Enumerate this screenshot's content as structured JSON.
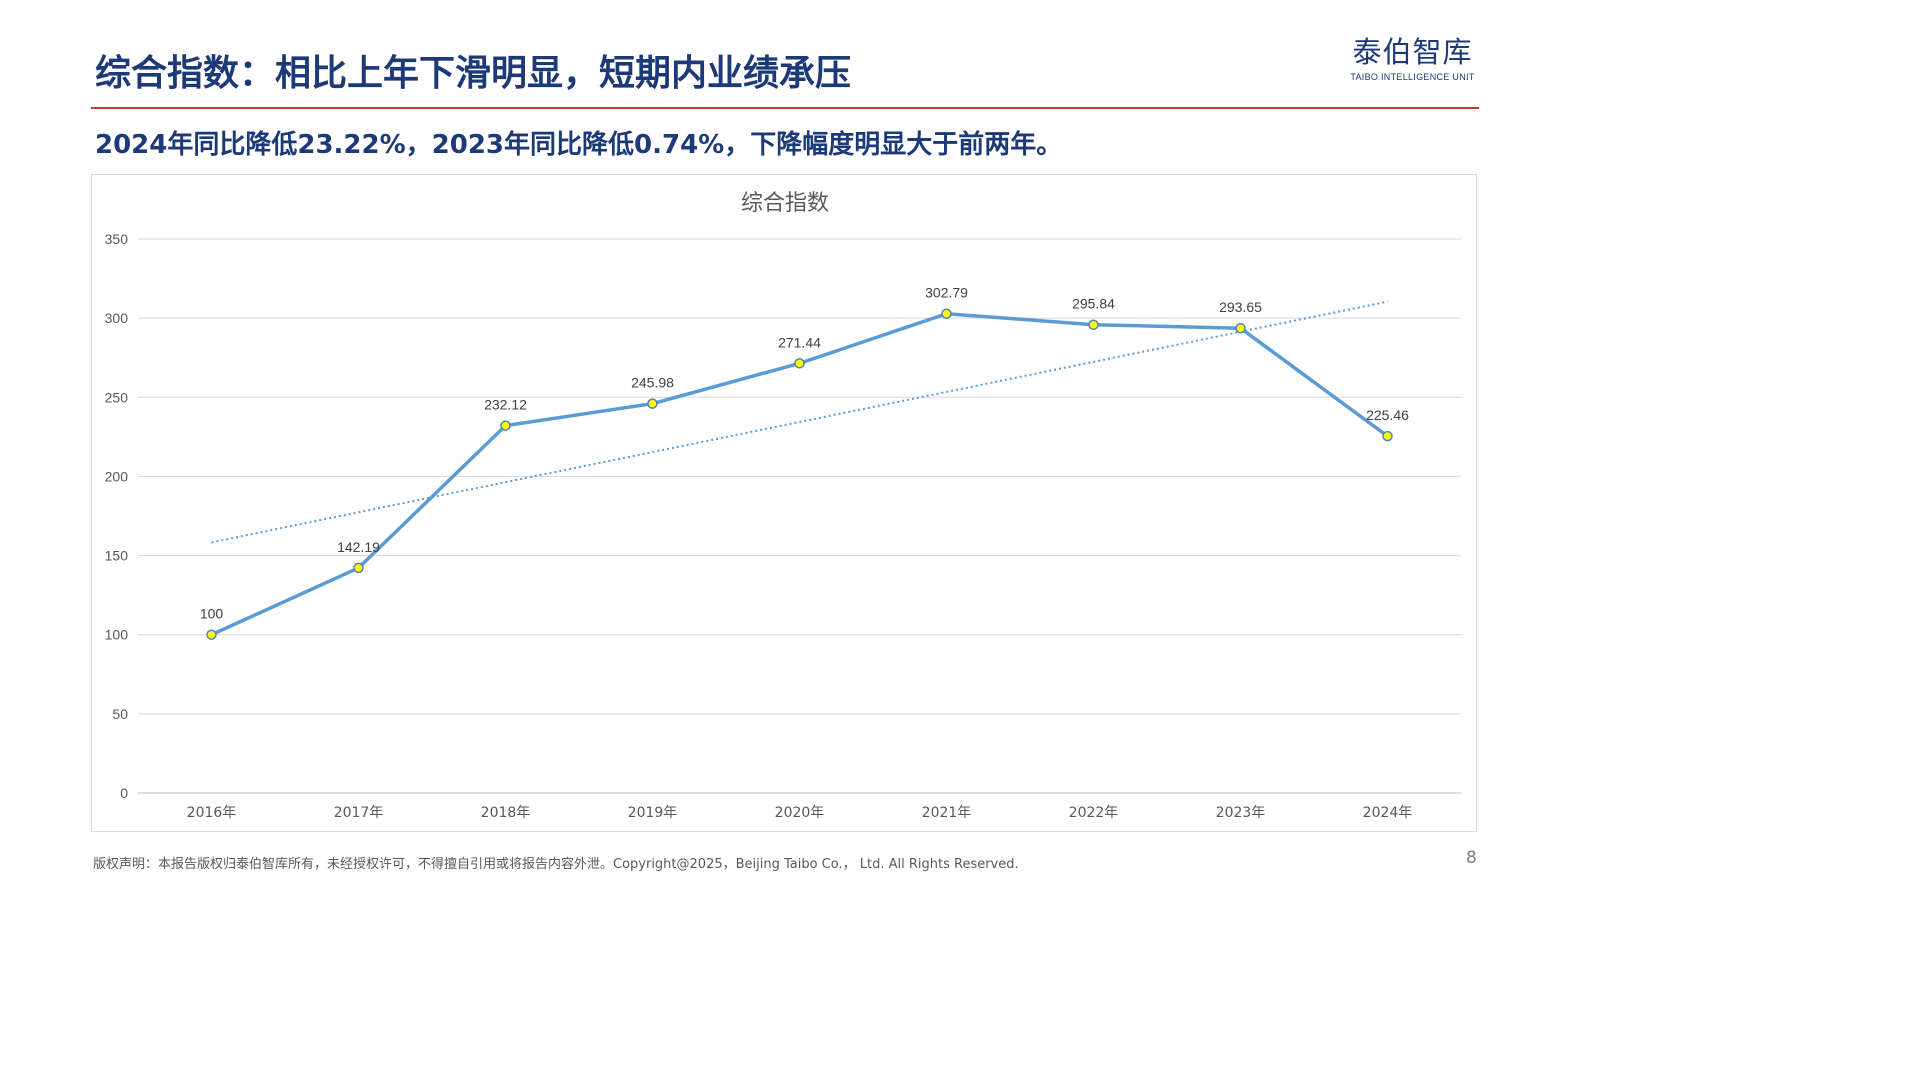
{
  "header": {
    "title": "综合指数：相比上年下滑明显，短期内业绩承压",
    "subtitle": "2024年同比降低23.22%，2023年同比降低0.74%，下降幅度明显大于前两年。"
  },
  "logo": {
    "name_cn": "泰伯智库",
    "name_en": "TAIBO INTELLIGENCE UNIT"
  },
  "footer": {
    "copyright": "版权声明：本报告版权归泰伯智库所有，未经授权许可，不得擅自引用或将报告内容外泄。Copyright@2025，Beijing Taibo Co.， Ltd. All Rights Reserved.",
    "page_number": "8"
  },
  "colors": {
    "brand": "#1c3a78",
    "rule": "#c0392b",
    "series_line": "#5b9bd5",
    "marker_fill": "#ffff00",
    "trendline": "#5b9bd5"
  },
  "chart_data": {
    "type": "line",
    "title": "综合指数",
    "xlabel": "",
    "ylabel": "",
    "categories": [
      "2016年",
      "2017年",
      "2018年",
      "2019年",
      "2020年",
      "2021年",
      "2022年",
      "2023年",
      "2024年"
    ],
    "series": [
      {
        "values": [
          100,
          142.19,
          232.12,
          245.98,
          271.44,
          302.79,
          295.84,
          293.65,
          225.46
        ],
        "data_labels": [
          "100",
          "142.19",
          "232.12",
          "245.98",
          "271.44",
          "302.79",
          "295.84",
          "293.65",
          "225.46"
        ]
      }
    ],
    "trendline": {
      "type": "linear",
      "style": "dotted"
    },
    "ylim": [
      0,
      350
    ],
    "yticks": [
      0,
      50,
      100,
      150,
      200,
      250,
      300,
      350
    ],
    "ytick_labels": [
      "0",
      "50",
      "100",
      "150",
      "200",
      "250",
      "300",
      "350"
    ],
    "grid": true,
    "legend": "none"
  }
}
